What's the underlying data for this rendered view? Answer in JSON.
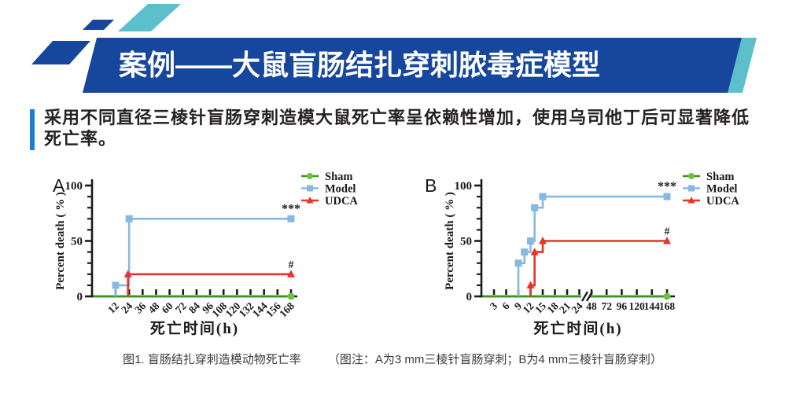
{
  "slide": {
    "title": "案例——大鼠盲肠结扎穿刺脓毒症模型",
    "intro_lines": [
      "采用不同直径三棱针盲肠穿刺造模大鼠死亡率呈依赖性增加，使用乌司他丁后可显著降低",
      "死亡率。"
    ],
    "caption": {
      "figure_label": "图1. 盲肠结扎穿刺造模动物死亡率",
      "note": "（图注：A为3 mm三棱针盲肠穿刺；B为4 mm三棱针盲肠穿刺）"
    },
    "colors": {
      "banner_blue": "#17479d",
      "teal": "#5cbfca",
      "accent_bar": "#1780d5",
      "sham_green": "#3f9322",
      "sham_marker": "#6cc13e",
      "model_blue": "#85b9e2",
      "udca_red": "#e8322a",
      "axis_black": "#1a1a1a"
    }
  },
  "chart_data": [
    {
      "type": "line",
      "panel_label": "A",
      "xlabel": "死亡时间(h)",
      "ylabel": "Percent death ( % )",
      "ylim": [
        0,
        100
      ],
      "yticks": [
        0,
        50,
        100
      ],
      "legend_position": "right-top",
      "xticks": [
        {
          "label": "12",
          "rotated": true
        },
        {
          "label": "24",
          "rotated": true
        },
        {
          "label": "36",
          "rotated": true
        },
        {
          "label": "48",
          "rotated": true
        },
        {
          "label": "60",
          "rotated": true
        },
        {
          "label": "72",
          "rotated": true
        },
        {
          "label": "84",
          "rotated": true
        },
        {
          "label": "96",
          "rotated": true
        },
        {
          "label": "108",
          "rotated": true
        },
        {
          "label": "120",
          "rotated": true
        },
        {
          "label": "132",
          "rotated": true
        },
        {
          "label": "144",
          "rotated": true
        },
        {
          "label": "156",
          "rotated": true
        },
        {
          "label": "168",
          "rotated": true
        }
      ],
      "series": [
        {
          "name": "Sham",
          "color": "#3f9322",
          "marker": "circle",
          "marker_color": "#6cc13e",
          "markers": "last",
          "from_axis_start": true,
          "points": [
            {
              "t": 168,
              "pct": 0
            }
          ]
        },
        {
          "name": "Model",
          "color": "#85b9e2",
          "marker": "square",
          "marker_color": "#85b9e2",
          "markers": "all",
          "start_riser": true,
          "points": [
            {
              "t": 12,
              "pct": 10
            },
            {
              "t": 24,
              "pct": 70
            },
            {
              "t": 168,
              "pct": 70
            }
          ],
          "annotation": "***"
        },
        {
          "name": "UDCA",
          "color": "#e8322a",
          "marker": "triangle",
          "marker_color": "#e8322a",
          "markers": "all",
          "start_riser": true,
          "points": [
            {
              "t": 23,
              "pct": 20
            },
            {
              "t": 168,
              "pct": 20
            }
          ],
          "annotation": "#"
        }
      ]
    },
    {
      "type": "line",
      "panel_label": "B",
      "xlabel": "死亡时间(h)",
      "ylabel": "Percent death ( % )",
      "ylim": [
        0,
        100
      ],
      "yticks": [
        0,
        50,
        100
      ],
      "legend_position": "right-top",
      "axis_break_after": "24",
      "xticks": [
        {
          "label": "3",
          "rotated": true
        },
        {
          "label": "6",
          "rotated": true
        },
        {
          "label": "9",
          "rotated": true
        },
        {
          "label": "12",
          "rotated": true
        },
        {
          "label": "15",
          "rotated": true
        },
        {
          "label": "18",
          "rotated": true
        },
        {
          "label": "21",
          "rotated": true
        },
        {
          "label": "24",
          "rotated": true
        },
        {
          "label": "48",
          "rotated": false
        },
        {
          "label": "72",
          "rotated": false
        },
        {
          "label": "96",
          "rotated": false
        },
        {
          "label": "120",
          "rotated": false
        },
        {
          "label": "144",
          "rotated": false
        },
        {
          "label": "168",
          "rotated": false
        }
      ],
      "series": [
        {
          "name": "Sham",
          "color": "#3f9322",
          "marker": "circle",
          "marker_color": "#6cc13e",
          "markers": "last",
          "from_axis_start": true,
          "points": [
            {
              "t": 168,
              "pct": 0
            }
          ]
        },
        {
          "name": "Model",
          "color": "#85b9e2",
          "marker": "square",
          "marker_color": "#85b9e2",
          "markers": "all",
          "start_riser": true,
          "points": [
            {
              "t": 9,
              "pct": 30
            },
            {
              "t": 10.5,
              "pct": 40
            },
            {
              "t": 12,
              "pct": 50
            },
            {
              "t": 13,
              "pct": 80
            },
            {
              "t": 15,
              "pct": 90
            },
            {
              "t": 168,
              "pct": 90
            }
          ],
          "annotation": "***"
        },
        {
          "name": "UDCA",
          "color": "#e8322a",
          "marker": "triangle",
          "marker_color": "#e8322a",
          "markers": "all",
          "start_riser": true,
          "points": [
            {
              "t": 12,
              "pct": 10
            },
            {
              "t": 13,
              "pct": 40
            },
            {
              "t": 15,
              "pct": 50
            },
            {
              "t": 168,
              "pct": 50
            }
          ],
          "annotation": "#"
        }
      ]
    }
  ]
}
